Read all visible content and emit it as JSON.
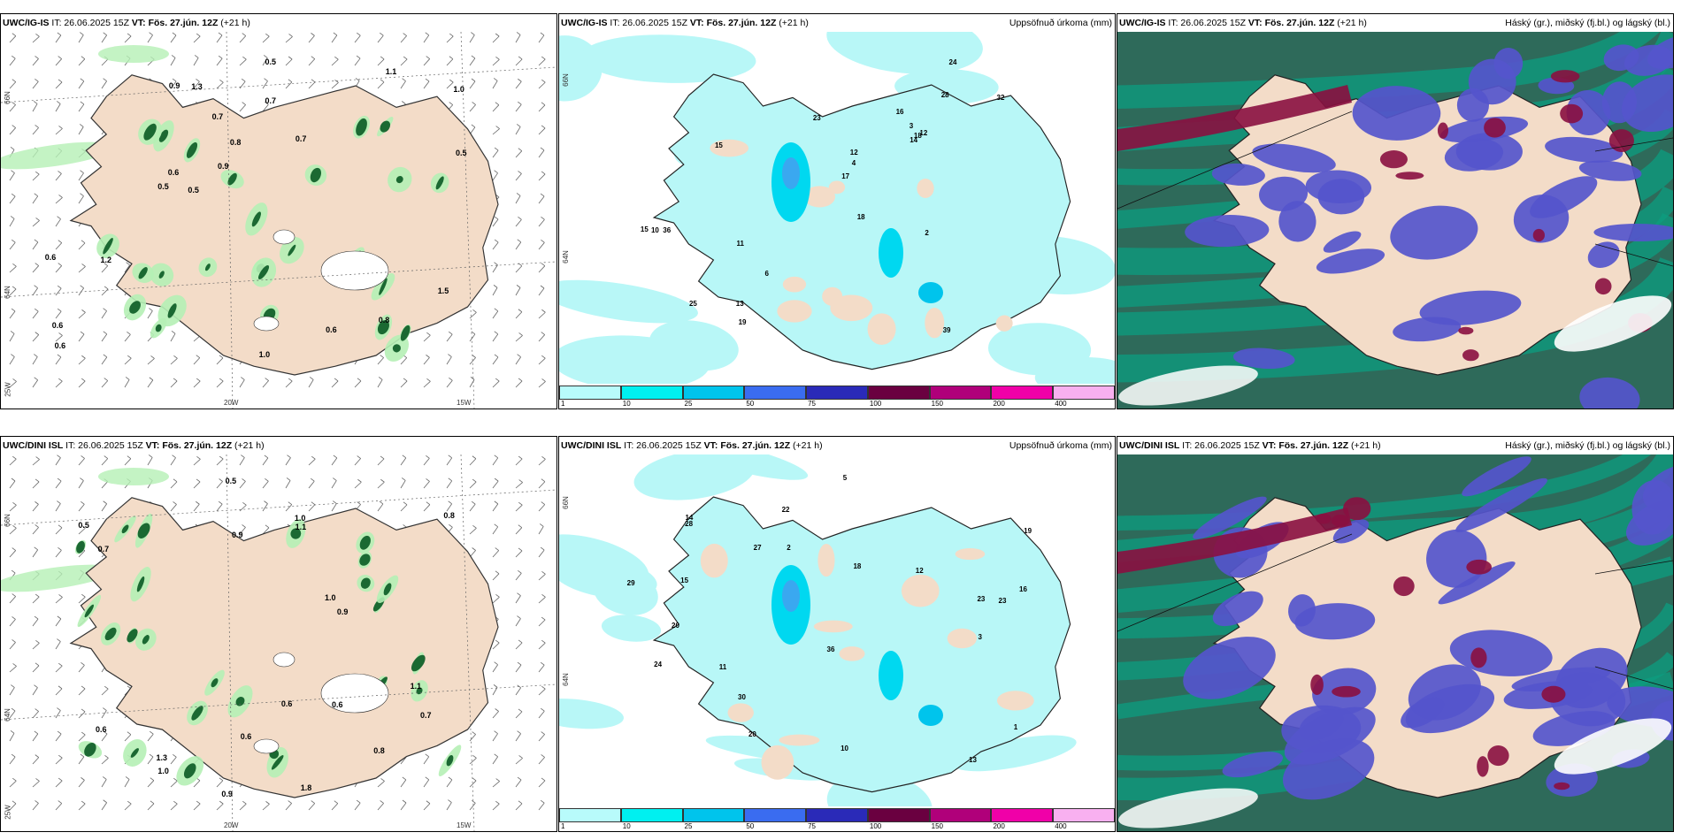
{
  "panels": [
    {
      "model": "UWC/IG-IS",
      "it": "IT: 26.06.2025 15Z",
      "vt_label": "VT:",
      "vt": "Fös. 27.jún. 12Z",
      "lead": "(+21 h)",
      "right_title": "",
      "lon_labels": [
        "20W",
        "15W"
      ],
      "lat_labels": [
        "66N",
        "64N",
        "25W"
      ],
      "values": [
        "0.7",
        "0.6",
        "0.5",
        "1.0",
        "0.6",
        "1.5",
        "0.8",
        "1.2",
        "1.0",
        "1.3",
        "0.5",
        "0.9",
        "0.6",
        "0.8",
        "0.5",
        "1.1",
        "0.5",
        "0.7",
        "0.6",
        "0.9",
        "0.7",
        "0.6"
      ]
    },
    {
      "model": "UWC/IG-IS",
      "it": "IT: 26.06.2025 15Z",
      "vt_label": "VT:",
      "vt": "Fös. 27.jún. 12Z",
      "lead": "(+21 h)",
      "right_title": "Uppsöfnuð úrkoma (mm)",
      "lon_labels": [],
      "lat_labels": [
        "66N",
        "64N"
      ],
      "values": [
        "2",
        "4",
        "3",
        "18",
        "32",
        "39",
        "36",
        "24",
        "25",
        "19",
        "12",
        "15",
        "18",
        "17",
        "11",
        "13",
        "15",
        "16",
        "28",
        "23",
        "14",
        "6",
        "10",
        "12"
      ]
    },
    {
      "model": "UWC/IG-IS",
      "it": "IT: 26.06.2025 15Z",
      "vt_label": "VT:",
      "vt": "Fös. 27.jún. 12Z",
      "lead": "(+21 h)",
      "right_title": "Háský (gr.), miðský (fj.bl.) og lágský (bl.)",
      "lon_labels": [],
      "lat_labels": [],
      "values": []
    },
    {
      "model": "UWC/DINI ISL",
      "it": "IT: 26.06.2025 15Z",
      "vt_label": "VT:",
      "vt": "Fös. 27.jún. 12Z",
      "lead": "(+21 h)",
      "right_title": "",
      "lon_labels": [
        "20W",
        "15W"
      ],
      "lat_labels": [
        "66N",
        "64N",
        "25W"
      ],
      "values": [
        "0.9",
        "0.8",
        "0.6",
        "1.0",
        "0.5",
        "0.8",
        "1.1",
        "1.3",
        "0.9",
        "0.6",
        "1.0",
        "0.7",
        "0.9",
        "1.8",
        "0.6",
        "1.0",
        "0.5",
        "0.7",
        "1.1",
        "0.6"
      ]
    },
    {
      "model": "UWC/DINI ISL",
      "it": "IT: 26.06.2025 15Z",
      "vt_label": "VT:",
      "vt": "Fös. 27.jún. 12Z",
      "lead": "(+21 h)",
      "right_title": "Uppsöfnuð úrkoma (mm)",
      "lon_labels": [],
      "lat_labels": [
        "66N",
        "64N"
      ],
      "values": [
        "2",
        "1",
        "3",
        "14",
        "30",
        "36",
        "29",
        "23",
        "20",
        "27",
        "19",
        "24",
        "22",
        "16",
        "12",
        "18",
        "15",
        "20",
        "28",
        "23",
        "11",
        "5",
        "10",
        "13"
      ]
    },
    {
      "model": "UWC/DINI ISL",
      "it": "IT: 26.06.2025 15Z",
      "vt_label": "VT:",
      "vt": "Fös. 27.jún. 12Z",
      "lead": "(+21 h)",
      "right_title": "Háský (gr.), miðský (fj.bl.) og lágský (bl.)",
      "lon_labels": [],
      "lat_labels": [],
      "values": []
    }
  ],
  "colorbar": {
    "ticks": [
      "1",
      "10",
      "25",
      "50",
      "75",
      "100",
      "150",
      "200",
      "400"
    ],
    "colors": [
      "#b8fbfb",
      "#00f0f0",
      "#00c4ec",
      "#3a6cf0",
      "#2a2ab8",
      "#6a0040",
      "#b0007a",
      "#f000a8",
      "#f8b0f0"
    ]
  },
  "colors": {
    "land": "#f3dcc8",
    "sea": "#ffffff",
    "precip_light": "#b8f7f7",
    "green_light": "#b5f0b5",
    "green_mid": "#3cb85c",
    "green_dark": "#0a5a24",
    "cloud_high": "#0c9e80",
    "cloud_mid": "#5555cc",
    "cloud_low": "#8a1040"
  }
}
